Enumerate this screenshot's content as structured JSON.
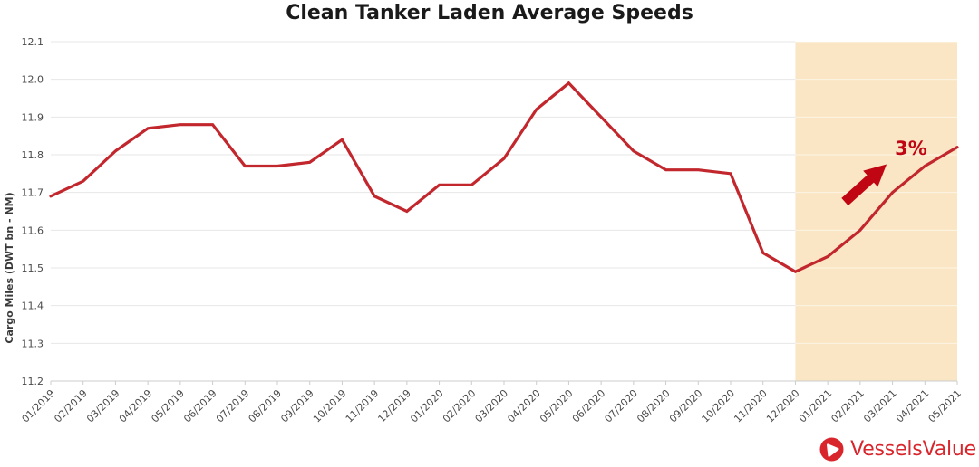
{
  "chart_data": {
    "type": "line",
    "title": "Clean Tanker Laden Average Speeds",
    "ylabel": "Cargo Miles (DWT bn - NM)",
    "xlabel": "",
    "x": [
      "01/2019",
      "02/2019",
      "03/2019",
      "04/2019",
      "05/2019",
      "06/2019",
      "07/2019",
      "08/2019",
      "09/2019",
      "10/2019",
      "11/2019",
      "12/2019",
      "01/2020",
      "02/2020",
      "03/2020",
      "04/2020",
      "05/2020",
      "06/2020",
      "07/2020",
      "08/2020",
      "09/2020",
      "10/2020",
      "11/2020",
      "12/2020",
      "01/2021",
      "02/2021",
      "03/2021",
      "04/2021",
      "05/2021"
    ],
    "values": [
      11.69,
      11.73,
      11.81,
      11.87,
      11.88,
      11.88,
      11.77,
      11.77,
      11.78,
      11.84,
      11.69,
      11.65,
      11.72,
      11.72,
      11.79,
      11.92,
      11.99,
      11.9,
      11.81,
      11.76,
      11.76,
      11.75,
      11.54,
      11.49,
      11.53,
      11.6,
      11.7,
      11.77,
      11.82
    ],
    "ylim": [
      11.2,
      12.1
    ],
    "ytick_step": 0.1,
    "grid": true,
    "legend": "none",
    "line_color": "#C2272D",
    "highlight_region": {
      "from": "12/2020",
      "to": "05/2021",
      "color": "#FAE6C5"
    },
    "annotation": {
      "label": "3%",
      "color": "#C00513"
    }
  },
  "footer": {
    "brand": "VesselsValue",
    "logo_color": "#D9252C"
  }
}
